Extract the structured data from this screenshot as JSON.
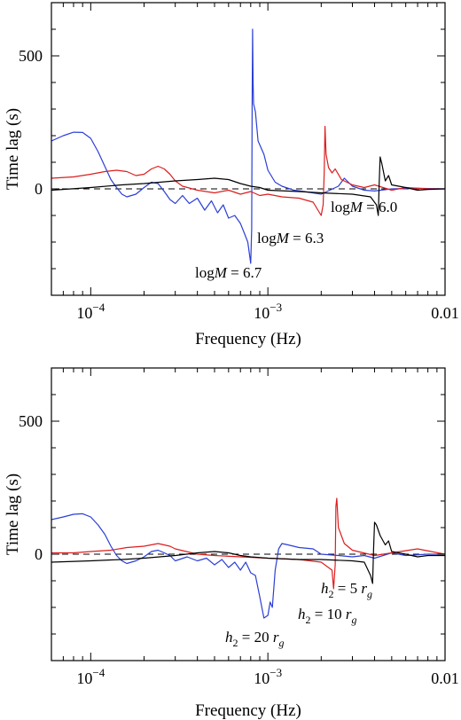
{
  "chart_data": [
    {
      "type": "line",
      "xlabel": "Frequency (Hz)",
      "ylabel": "Time lag (s)",
      "xscale": "log",
      "xlim": [
        6e-05,
        0.01
      ],
      "ylim": [
        -400,
        700
      ],
      "xticks": [
        {
          "value": 0.0001,
          "base": "10",
          "exp": "−4"
        },
        {
          "value": 0.001,
          "base": "10",
          "exp": "−3"
        },
        {
          "value": 0.01,
          "label": "0.01"
        }
      ],
      "yticks": [
        {
          "value": 0,
          "label": "0"
        },
        {
          "value": 500,
          "label": "500"
        }
      ],
      "zero_line": true,
      "series": [
        {
          "color": "#2b3fd6",
          "points": [
            [
              6e-05,
              180
            ],
            [
              7e-05,
              200
            ],
            [
              8e-05,
              213
            ],
            [
              9e-05,
              212
            ],
            [
              0.0001,
              190
            ],
            [
              0.00011,
              140
            ],
            [
              0.00012,
              85
            ],
            [
              0.00013,
              35
            ],
            [
              0.00014,
              5
            ],
            [
              0.00015,
              -20
            ],
            [
              0.00016,
              -30
            ],
            [
              0.00018,
              -20
            ],
            [
              0.0002,
              5
            ],
            [
              0.00022,
              25
            ],
            [
              0.00024,
              20
            ],
            [
              0.00026,
              -10
            ],
            [
              0.00028,
              -40
            ],
            [
              0.0003,
              -55
            ],
            [
              0.00033,
              -25
            ],
            [
              0.00036,
              -55
            ],
            [
              0.0004,
              -35
            ],
            [
              0.00044,
              -80
            ],
            [
              0.00048,
              -45
            ],
            [
              0.00052,
              -90
            ],
            [
              0.00056,
              -60
            ],
            [
              0.0006,
              -110
            ],
            [
              0.00065,
              -100
            ],
            [
              0.0007,
              -130
            ],
            [
              0.00074,
              -170
            ],
            [
              0.00077,
              -200
            ],
            [
              0.0008,
              -280
            ],
            [
              0.00081,
              -150
            ],
            [
              0.000815,
              310
            ],
            [
              0.00082,
              600
            ],
            [
              0.000825,
              400
            ],
            [
              0.00083,
              320
            ],
            [
              0.00085,
              290
            ],
            [
              0.00088,
              180
            ],
            [
              0.00095,
              130
            ],
            [
              0.001,
              70
            ],
            [
              0.0011,
              25
            ],
            [
              0.0012,
              10
            ],
            [
              0.0014,
              -5
            ],
            [
              0.0016,
              -10
            ],
            [
              0.002,
              -20
            ],
            [
              0.0025,
              10
            ],
            [
              0.0027,
              40
            ],
            [
              0.003,
              10
            ],
            [
              0.0035,
              -5
            ],
            [
              0.004,
              -8
            ],
            [
              0.005,
              0
            ],
            [
              0.007,
              2
            ],
            [
              0.01,
              0
            ]
          ]
        },
        {
          "color": "#dc1e1e",
          "points": [
            [
              6e-05,
              40
            ],
            [
              8e-05,
              45
            ],
            [
              0.0001,
              55
            ],
            [
              0.00012,
              65
            ],
            [
              0.00014,
              70
            ],
            [
              0.00016,
              65
            ],
            [
              0.00018,
              50
            ],
            [
              0.0002,
              55
            ],
            [
              0.00022,
              75
            ],
            [
              0.00024,
              85
            ],
            [
              0.00026,
              75
            ],
            [
              0.00028,
              55
            ],
            [
              0.0003,
              30
            ],
            [
              0.00033,
              10
            ],
            [
              0.0004,
              -5
            ],
            [
              0.0005,
              -15
            ],
            [
              0.0006,
              -5
            ],
            [
              0.0007,
              -20
            ],
            [
              0.0008,
              -10
            ],
            [
              0.0009,
              -25
            ],
            [
              0.001,
              -20
            ],
            [
              0.0012,
              -30
            ],
            [
              0.0015,
              -35
            ],
            [
              0.0018,
              -50
            ],
            [
              0.002,
              -100
            ],
            [
              0.00205,
              -60
            ],
            [
              0.00208,
              60
            ],
            [
              0.0021,
              235
            ],
            [
              0.00213,
              130
            ],
            [
              0.0022,
              80
            ],
            [
              0.0023,
              60
            ],
            [
              0.0024,
              75
            ],
            [
              0.0026,
              35
            ],
            [
              0.003,
              15
            ],
            [
              0.0035,
              5
            ],
            [
              0.004,
              15
            ],
            [
              0.005,
              -5
            ],
            [
              0.006,
              5
            ],
            [
              0.008,
              0
            ],
            [
              0.01,
              0
            ]
          ]
        },
        {
          "color": "#000000",
          "points": [
            [
              6e-05,
              -5
            ],
            [
              0.0001,
              5
            ],
            [
              0.00015,
              15
            ],
            [
              0.0002,
              20
            ],
            [
              0.0003,
              30
            ],
            [
              0.0004,
              35
            ],
            [
              0.0005,
              40
            ],
            [
              0.0006,
              35
            ],
            [
              0.0007,
              20
            ],
            [
              0.0008,
              10
            ],
            [
              0.0009,
              5
            ],
            [
              0.001,
              -5
            ],
            [
              0.0015,
              -10
            ],
            [
              0.002,
              -15
            ],
            [
              0.003,
              -20
            ],
            [
              0.0038,
              -30
            ],
            [
              0.0041,
              -60
            ],
            [
              0.0042,
              -100
            ],
            [
              0.00425,
              20
            ],
            [
              0.0043,
              120
            ],
            [
              0.0044,
              95
            ],
            [
              0.0046,
              30
            ],
            [
              0.0048,
              50
            ],
            [
              0.005,
              15
            ],
            [
              0.006,
              5
            ],
            [
              0.007,
              -5
            ],
            [
              0.008,
              -2
            ],
            [
              0.01,
              0
            ]
          ]
        }
      ],
      "annotations": [
        {
          "text": "logM = 6.0",
          "pre": "log",
          "ital": "M",
          "post": " = 6.0"
        },
        {
          "text": "logM = 6.3",
          "pre": "log",
          "ital": "M",
          "post": " = 6.3"
        },
        {
          "text": "logM = 6.7",
          "pre": "log",
          "ital": "M",
          "post": " = 6.7"
        }
      ]
    },
    {
      "type": "line",
      "xlabel": "Frequency (Hz)",
      "ylabel": "Time lag (s)",
      "xscale": "log",
      "xlim": [
        6e-05,
        0.01
      ],
      "ylim": [
        -400,
        700
      ],
      "xticks": [
        {
          "value": 0.0001,
          "base": "10",
          "exp": "−4"
        },
        {
          "value": 0.001,
          "base": "10",
          "exp": "−3"
        },
        {
          "value": 0.01,
          "label": "0.01"
        }
      ],
      "yticks": [
        {
          "value": 0,
          "label": "0"
        },
        {
          "value": 500,
          "label": "500"
        }
      ],
      "zero_line": true,
      "series": [
        {
          "color": "#2b3fd6",
          "points": [
            [
              6e-05,
              130
            ],
            [
              7e-05,
              140
            ],
            [
              8e-05,
              150
            ],
            [
              9e-05,
              152
            ],
            [
              0.0001,
              140
            ],
            [
              0.00011,
              110
            ],
            [
              0.00012,
              75
            ],
            [
              0.00013,
              30
            ],
            [
              0.00014,
              -5
            ],
            [
              0.00015,
              -25
            ],
            [
              0.00016,
              -35
            ],
            [
              0.00018,
              -25
            ],
            [
              0.0002,
              -10
            ],
            [
              0.00022,
              10
            ],
            [
              0.00024,
              15
            ],
            [
              0.00026,
              5
            ],
            [
              0.00028,
              -5
            ],
            [
              0.0003,
              -25
            ],
            [
              0.00035,
              -10
            ],
            [
              0.0004,
              -25
            ],
            [
              0.00045,
              -15
            ],
            [
              0.0005,
              -40
            ],
            [
              0.00055,
              -20
            ],
            [
              0.0006,
              -50
            ],
            [
              0.00065,
              -30
            ],
            [
              0.0007,
              -60
            ],
            [
              0.00075,
              -30
            ],
            [
              0.0008,
              -70
            ],
            [
              0.00085,
              -80
            ],
            [
              0.0009,
              -160
            ],
            [
              0.00095,
              -240
            ],
            [
              0.001,
              -230
            ],
            [
              0.00103,
              -180
            ],
            [
              0.00106,
              -200
            ],
            [
              0.0011,
              -60
            ],
            [
              0.00115,
              20
            ],
            [
              0.0012,
              40
            ],
            [
              0.0013,
              35
            ],
            [
              0.0015,
              25
            ],
            [
              0.0018,
              20
            ],
            [
              0.002,
              0
            ],
            [
              0.0025,
              -5
            ],
            [
              0.003,
              -10
            ],
            [
              0.0035,
              -5
            ],
            [
              0.004,
              -15
            ],
            [
              0.005,
              5
            ],
            [
              0.006,
              -5
            ],
            [
              0.008,
              0
            ],
            [
              0.01,
              0
            ]
          ]
        },
        {
          "color": "#dc1e1e",
          "points": [
            [
              6e-05,
              5
            ],
            [
              8e-05,
              5
            ],
            [
              0.0001,
              10
            ],
            [
              0.00013,
              15
            ],
            [
              0.00016,
              25
            ],
            [
              0.0002,
              30
            ],
            [
              0.00024,
              40
            ],
            [
              0.00028,
              30
            ],
            [
              0.0003,
              20
            ],
            [
              0.0004,
              0
            ],
            [
              0.0005,
              -5
            ],
            [
              0.0007,
              -10
            ],
            [
              0.001,
              -15
            ],
            [
              0.0015,
              -20
            ],
            [
              0.002,
              -30
            ],
            [
              0.0023,
              -60
            ],
            [
              0.00235,
              -130
            ],
            [
              0.0024,
              -40
            ],
            [
              0.00242,
              180
            ],
            [
              0.00245,
              210
            ],
            [
              0.0025,
              100
            ],
            [
              0.0027,
              40
            ],
            [
              0.003,
              15
            ],
            [
              0.004,
              -5
            ],
            [
              0.005,
              5
            ],
            [
              0.007,
              20
            ],
            [
              0.01,
              0
            ]
          ]
        },
        {
          "color": "#000000",
          "points": [
            [
              6e-05,
              -30
            ],
            [
              0.0001,
              -25
            ],
            [
              0.00015,
              -20
            ],
            [
              0.0002,
              -15
            ],
            [
              0.0003,
              -5
            ],
            [
              0.0004,
              5
            ],
            [
              0.0005,
              10
            ],
            [
              0.0006,
              5
            ],
            [
              0.0007,
              -5
            ],
            [
              0.0008,
              -10
            ],
            [
              0.001,
              -15
            ],
            [
              0.0015,
              -20
            ],
            [
              0.002,
              -20
            ],
            [
              0.003,
              -25
            ],
            [
              0.0035,
              -30
            ],
            [
              0.0038,
              -80
            ],
            [
              0.0039,
              -110
            ],
            [
              0.00395,
              20
            ],
            [
              0.004,
              120
            ],
            [
              0.0041,
              110
            ],
            [
              0.0043,
              70
            ],
            [
              0.0046,
              35
            ],
            [
              0.0048,
              50
            ],
            [
              0.005,
              10
            ],
            [
              0.006,
              0
            ],
            [
              0.007,
              -10
            ],
            [
              0.008,
              -5
            ],
            [
              0.01,
              -5
            ]
          ]
        }
      ],
      "annotations": [
        {
          "text": "h2 = 5 rg",
          "pre": "",
          "ital": "h",
          "sub": "2",
          "post": " = 5 ",
          "ital2": "r",
          "sub2": "g"
        },
        {
          "text": "h2 = 10 rg",
          "pre": "",
          "ital": "h",
          "sub": "2",
          "post": " = 10 ",
          "ital2": "r",
          "sub2": "g"
        },
        {
          "text": "h2 = 20 rg",
          "pre": "",
          "ital": "h",
          "sub": "2",
          "post": " = 20 ",
          "ital2": "r",
          "sub2": "g"
        }
      ]
    }
  ]
}
